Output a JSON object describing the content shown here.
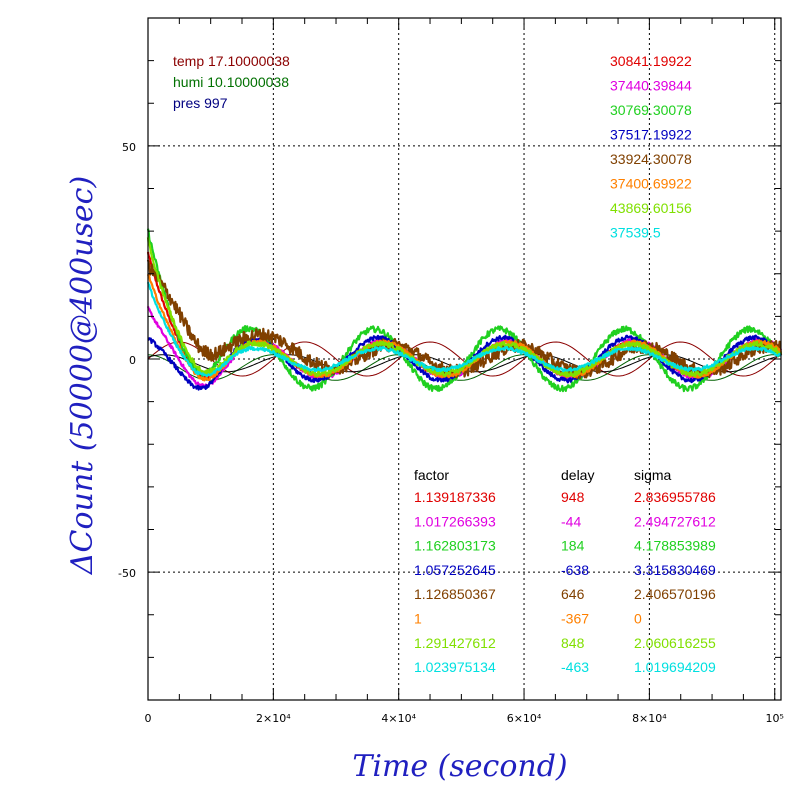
{
  "chart_data": {
    "type": "line",
    "xlabel": "Time (second)",
    "ylabel": "ΔCount (50000@400usec)",
    "xlim": [
      0,
      101000
    ],
    "ylim": [
      -80,
      80
    ],
    "x_ticks": [
      0,
      20000,
      40000,
      60000,
      80000,
      100000
    ],
    "x_tick_labels": [
      "0",
      "2×10⁴",
      "4×10⁴",
      "6×10⁴",
      "8×10⁴",
      "10⁵"
    ],
    "y_ticks": [
      -50,
      0,
      50
    ],
    "y_tick_labels": [
      "-50",
      "0",
      "50"
    ],
    "grid": true,
    "env": [
      {
        "text": "temp 17.10000038",
        "color": "#8b0000"
      },
      {
        "text": "humi 10.10000038",
        "color": "#007000"
      },
      {
        "text": "pres 997",
        "color": "#000080"
      }
    ],
    "means": [
      {
        "text": "30841.19922",
        "color": "#e00000"
      },
      {
        "text": "37440.39844",
        "color": "#e000e0"
      },
      {
        "text": "30769.30078",
        "color": "#20d020"
      },
      {
        "text": "37517.19922",
        "color": "#0000c0"
      },
      {
        "text": "33924.30078",
        "color": "#804000"
      },
      {
        "text": "37400.69922",
        "color": "#ff8000"
      },
      {
        "text": "43869.60156",
        "color": "#80e000"
      },
      {
        "text": "37539.5",
        "color": "#00e0e0"
      }
    ],
    "table": {
      "headers": [
        "factor",
        "delay",
        "sigma"
      ],
      "rows": [
        {
          "factor": "1.139187336",
          "delay": "948",
          "sigma": "2.836955786",
          "color": "#e00000"
        },
        {
          "factor": "1.017266393",
          "delay": "-44",
          "sigma": "2.494727612",
          "color": "#e000e0"
        },
        {
          "factor": "1.162803173",
          "delay": "184",
          "sigma": "4.178853989",
          "color": "#20d020"
        },
        {
          "factor": "1.057252645",
          "delay": "-638",
          "sigma": "3.315830469",
          "color": "#0000c0"
        },
        {
          "factor": "1.126850367",
          "delay": "646",
          "sigma": "2.406570196",
          "color": "#804000"
        },
        {
          "factor": "1",
          "delay": "-367",
          "sigma": "0",
          "color": "#ff8000"
        },
        {
          "factor": "1.291427612",
          "delay": "848",
          "sigma": "2.060616255",
          "color": "#80e000"
        },
        {
          "factor": "1.023975134",
          "delay": "-463",
          "sigma": "1.019694209",
          "color": "#00e0e0"
        }
      ]
    },
    "series": [
      {
        "color": "#e00000",
        "amp": 4,
        "phase": 0.2,
        "start": 25,
        "decay": 4000,
        "noise": 0.4
      },
      {
        "color": "#e000e0",
        "amp": 4.5,
        "phase": 0.1,
        "start": 12,
        "decay": 3500,
        "noise": 0.4
      },
      {
        "color": "#20d020",
        "amp": 7,
        "phase": 0.6,
        "start": 30,
        "decay": 4500,
        "noise": 0.7
      },
      {
        "color": "#0000c0",
        "amp": 5,
        "phase": 0.4,
        "start": 5,
        "decay": 3000,
        "noise": 0.5
      },
      {
        "color": "#804000",
        "amp": 3,
        "phase": -0.3,
        "start": 22,
        "decay": 9000,
        "noise": 1.6
      },
      {
        "color": "#ff8000",
        "amp": 4,
        "phase": 0.15,
        "start": 20,
        "decay": 4000,
        "noise": 0.4
      },
      {
        "color": "#80e000",
        "amp": 3.5,
        "phase": 0.25,
        "start": 28,
        "decay": 4200,
        "noise": 0.6
      },
      {
        "color": "#00e0e0",
        "amp": 2.5,
        "phase": 0.35,
        "start": 18,
        "decay": 3800,
        "noise": 0.4
      }
    ],
    "reference_lines": [
      {
        "color": "#8b0000",
        "amp": 4,
        "phase": 0.0,
        "offset": 0
      },
      {
        "color": "#006000",
        "amp": 3,
        "phase": 1.6,
        "offset": -2
      },
      {
        "color": "#000000",
        "amp": 2,
        "phase": 0.8,
        "offset": -1
      }
    ],
    "period": 20000
  }
}
